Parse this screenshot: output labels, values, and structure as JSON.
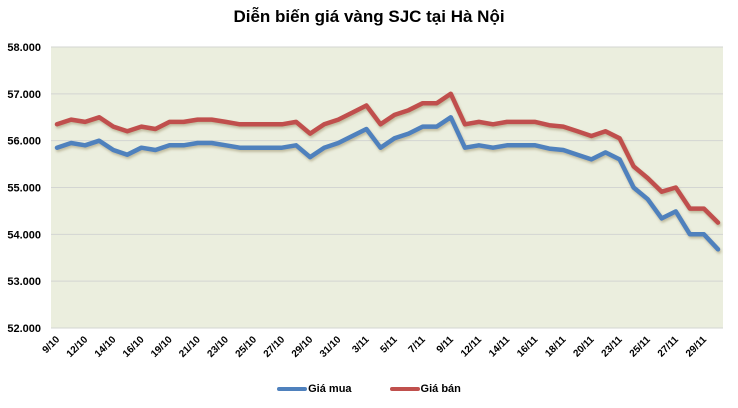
{
  "chart_data": {
    "type": "line",
    "title": "Diễn biến giá vàng SJC tại Hà Nội",
    "xlabel": "",
    "ylabel": "",
    "ylim": [
      52000,
      58000
    ],
    "yticks": [
      "52.000",
      "53.000",
      "54.000",
      "55.000",
      "56.000",
      "57.000",
      "58.000"
    ],
    "ytick_values": [
      52000,
      53000,
      54000,
      55000,
      56000,
      57000,
      58000
    ],
    "xtick_labels": [
      "9/10",
      "12/10",
      "14/10",
      "16/10",
      "19/10",
      "21/10",
      "23/10",
      "25/10",
      "27/10",
      "29/10",
      "31/10",
      "3/11",
      "5/11",
      "7/11",
      "9/11",
      "12/11",
      "14/11",
      "16/11",
      "18/11",
      "20/11",
      "23/11",
      "25/11",
      "27/11",
      "29/11"
    ],
    "xtick_every": 2,
    "num_points": 48,
    "grid": true,
    "legend_position": "bottom",
    "plot_background": "#EBEEDE",
    "series": [
      {
        "name": "Giá mua",
        "color": "#4F81BD",
        "values": [
          55850,
          55950,
          55900,
          56000,
          55800,
          55700,
          55850,
          55800,
          55900,
          55900,
          55950,
          55950,
          55900,
          55850,
          55850,
          55850,
          55850,
          55900,
          55650,
          55850,
          55950,
          56100,
          56250,
          55850,
          56050,
          56150,
          56300,
          56300,
          56500,
          55850,
          55900,
          55850,
          55900,
          55900,
          55900,
          55830,
          55800,
          55700,
          55600,
          55750,
          55600,
          55000,
          54750,
          54340,
          54490,
          54000,
          54000,
          53680
        ]
      },
      {
        "name": "Giá bán",
        "color": "#C0504D",
        "values": [
          56350,
          56450,
          56400,
          56500,
          56300,
          56200,
          56300,
          56250,
          56400,
          56400,
          56450,
          56450,
          56400,
          56350,
          56350,
          56350,
          56350,
          56400,
          56150,
          56350,
          56450,
          56600,
          56750,
          56350,
          56550,
          56650,
          56800,
          56800,
          57000,
          56350,
          56400,
          56350,
          56400,
          56400,
          56400,
          56330,
          56300,
          56200,
          56100,
          56200,
          56050,
          55450,
          55200,
          54910,
          55000,
          54550,
          54550,
          54250
        ]
      }
    ]
  },
  "legend": {
    "items": [
      {
        "label": "Giá mua",
        "color": "#4F81BD"
      },
      {
        "label": "Giá bán",
        "color": "#C0504D"
      }
    ]
  }
}
